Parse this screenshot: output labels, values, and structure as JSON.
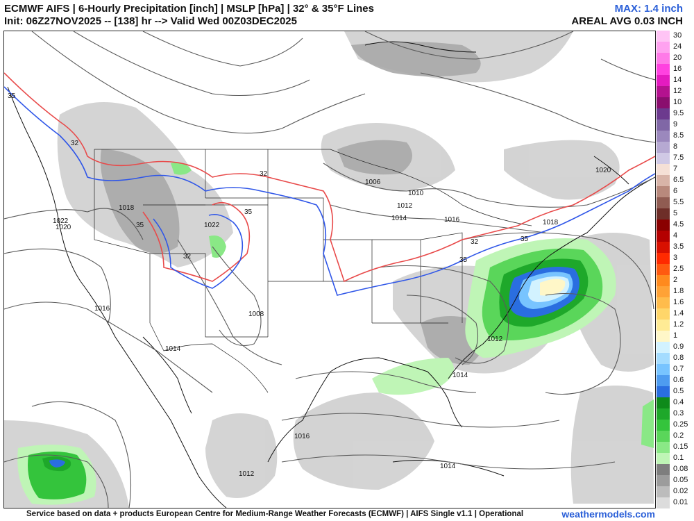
{
  "header": {
    "title_line1": "ECMWF AIFS | 6-Hourly Precipitation [inch] | MSLP [hPa] | 32° & 35°F Lines",
    "title_line2": "Init: 06Z27NOV2025 -- [138] hr --> Valid Wed 00Z03DEC2025",
    "max_label": "MAX: 1.4 inch",
    "areal_avg_label": "AREAL AVG 0.03 INCH"
  },
  "footer": {
    "credit": "Service based on data + products European Centre for Medium-Range Weather Forecasts (ECMWF) | AIFS Single v1.1 | Operational",
    "brand": "weathermodels.com"
  },
  "colors": {
    "max_label": "#2a5fd8",
    "brand": "#2a5fd8",
    "line_32F": "#2f56e8",
    "line_35F": "#e84a4a",
    "isobar": "#555555",
    "border": "#222222"
  },
  "colorbar": [
    {
      "label": "30",
      "color": "#ffc4f5"
    },
    {
      "label": "24",
      "color": "#ffa2f0"
    },
    {
      "label": "20",
      "color": "#ff7ae8"
    },
    {
      "label": "16",
      "color": "#ff42e0"
    },
    {
      "label": "14",
      "color": "#e41bc0"
    },
    {
      "label": "12",
      "color": "#b4128f"
    },
    {
      "label": "10",
      "color": "#8a0e6e"
    },
    {
      "label": "9.5",
      "color": "#6c3a8e"
    },
    {
      "label": "9",
      "color": "#8067a6"
    },
    {
      "label": "8.5",
      "color": "#9b88bd"
    },
    {
      "label": "8",
      "color": "#b6a9d2"
    },
    {
      "label": "7.5",
      "color": "#d0c9e5"
    },
    {
      "label": "7",
      "color": "#f5e0d6"
    },
    {
      "label": "6.5",
      "color": "#d8b4a8"
    },
    {
      "label": "6",
      "color": "#b8897c"
    },
    {
      "label": "5.5",
      "color": "#905c52"
    },
    {
      "label": "5",
      "color": "#6e2e28"
    },
    {
      "label": "4.5",
      "color": "#8a0000"
    },
    {
      "label": "4",
      "color": "#b40000"
    },
    {
      "label": "3.5",
      "color": "#d81000"
    },
    {
      "label": "3",
      "color": "#ff2a00"
    },
    {
      "label": "2.5",
      "color": "#ff5a10"
    },
    {
      "label": "2",
      "color": "#ff8a1e"
    },
    {
      "label": "1.8",
      "color": "#ffa236"
    },
    {
      "label": "1.6",
      "color": "#ffbc4c"
    },
    {
      "label": "1.4",
      "color": "#ffd66a"
    },
    {
      "label": "1.2",
      "color": "#ffeb95"
    },
    {
      "label": "1",
      "color": "#fff7c8"
    },
    {
      "label": "0.9",
      "color": "#d2f2ff"
    },
    {
      "label": "0.8",
      "color": "#a4dcff"
    },
    {
      "label": "0.7",
      "color": "#78c4ff"
    },
    {
      "label": "0.6",
      "color": "#4e9cf0"
    },
    {
      "label": "0.5",
      "color": "#2a6ee0"
    },
    {
      "label": "0.4",
      "color": "#0e8a1a"
    },
    {
      "label": "0.3",
      "color": "#1ea82a"
    },
    {
      "label": "0.25",
      "color": "#34c43c"
    },
    {
      "label": "0.2",
      "color": "#5ad65a"
    },
    {
      "label": "0.15",
      "color": "#8ae886"
    },
    {
      "label": "0.1",
      "color": "#bff5b6"
    },
    {
      "label": "0.08",
      "color": "#7e7e7e"
    },
    {
      "label": "0.05",
      "color": "#9c9c9c"
    },
    {
      "label": "0.02",
      "color": "#bcbcbc"
    },
    {
      "label": "0.01",
      "color": "#dcdcdc"
    }
  ],
  "map": {
    "isobar_labels": [
      "1006",
      "1010",
      "1012",
      "1014",
      "1016",
      "1018",
      "1020",
      "1022",
      "1008",
      "1014",
      "1016",
      "1018",
      "1020",
      "1022",
      "1012",
      "1014",
      "1016",
      "1014",
      "1012"
    ],
    "freezing_labels": [
      "32",
      "35",
      "32",
      "35",
      "32",
      "35",
      "32",
      "35",
      "35"
    ]
  }
}
